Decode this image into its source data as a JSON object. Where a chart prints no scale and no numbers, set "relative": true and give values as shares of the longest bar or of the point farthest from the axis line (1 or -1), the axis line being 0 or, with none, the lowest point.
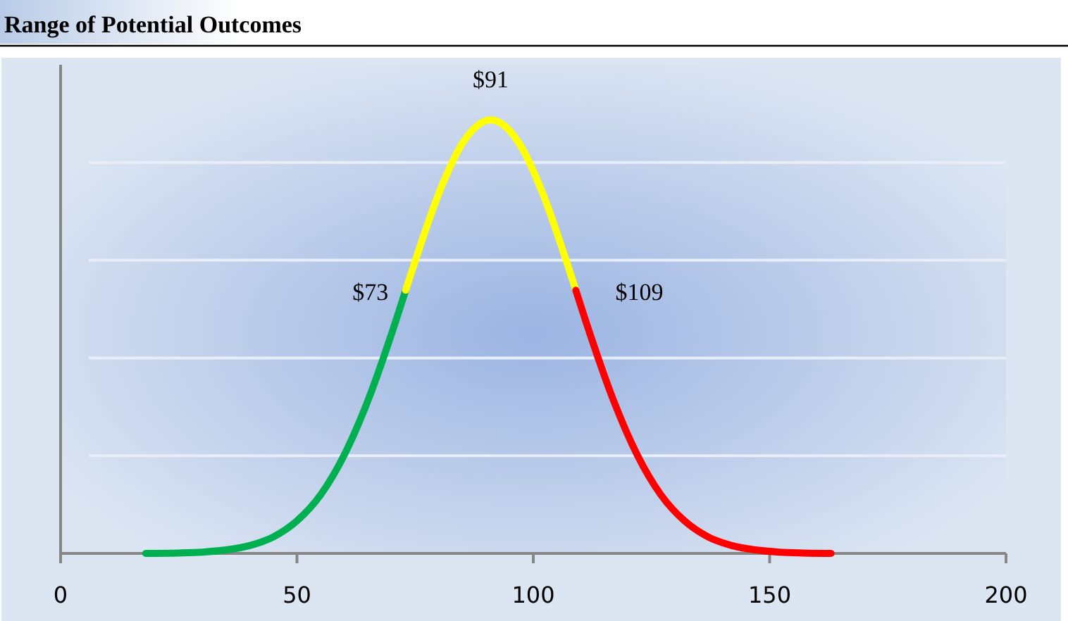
{
  "chart_data": {
    "type": "line",
    "title": "Range of Potential Outcomes",
    "relative": true,
    "xlim": [
      0,
      200
    ],
    "xticks": [
      0,
      50,
      100,
      150,
      200
    ],
    "grid": "y",
    "marker": "none",
    "line_style": "solid",
    "series": [
      {
        "color": "#00b050",
        "x": [
          18,
          25,
          30,
          35,
          40,
          45,
          50,
          55,
          60,
          65,
          70,
          73
        ],
        "values": [
          0,
          0.001,
          0.003,
          0.008,
          0.018,
          0.038,
          0.075,
          0.135,
          0.227,
          0.352,
          0.506,
          0.607
        ]
      },
      {
        "color": "#ffff00",
        "x": [
          73,
          75,
          80,
          85,
          91,
          97,
          102,
          107,
          109
        ],
        "values": [
          0.607,
          0.674,
          0.83,
          0.946,
          1,
          0.946,
          0.83,
          0.674,
          0.607
        ]
      },
      {
        "color": "#ff0000",
        "x": [
          109,
          112,
          117,
          122,
          127,
          132,
          137,
          142,
          147,
          152,
          157,
          163
        ],
        "values": [
          0.607,
          0.506,
          0.352,
          0.227,
          0.135,
          0.075,
          0.038,
          0.018,
          0.008,
          0.003,
          0.001,
          0
        ]
      }
    ],
    "annotations": [
      {
        "text": "$73",
        "x": 73,
        "y": 0.607
      },
      {
        "text": "$91",
        "x": 91,
        "y": 1
      },
      {
        "text": "$109",
        "x": 109,
        "y": 0.607
      }
    ]
  }
}
